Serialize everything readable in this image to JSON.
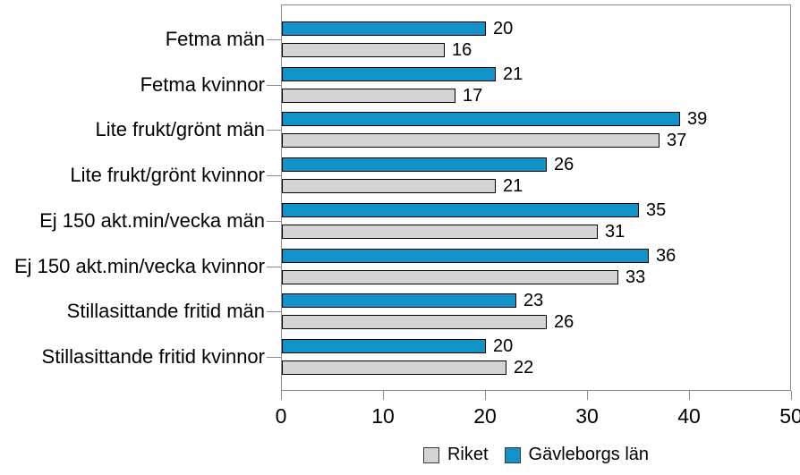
{
  "chart_data": {
    "type": "bar",
    "orientation": "horizontal",
    "title": "",
    "xlabel": "",
    "ylabel": "",
    "xlim": [
      0,
      50
    ],
    "x_ticks": [
      0,
      10,
      20,
      30,
      40,
      50
    ],
    "grid": false,
    "data_labels": true,
    "legend_position": "bottom",
    "categories": [
      "Fetma män",
      "Fetma kvinnor",
      "Lite frukt/grönt män",
      "Lite frukt/grönt kvinnor",
      "Ej 150 akt.min/vecka män",
      "Ej 150 akt.min/vecka kvinnor",
      "Stillasittande fritid män",
      "Stillasittande fritid kvinnor"
    ],
    "series": [
      {
        "name": "Gävleborgs län",
        "color": "#1193C9",
        "values": [
          20,
          21,
          39,
          26,
          35,
          36,
          23,
          20
        ]
      },
      {
        "name": "Riket",
        "color": "#D4D4D4",
        "values": [
          16,
          17,
          37,
          21,
          31,
          33,
          26,
          22
        ]
      }
    ]
  },
  "legend": {
    "items": [
      {
        "label": "Riket",
        "color": "#D4D4D4"
      },
      {
        "label": "Gävleborgs län",
        "color": "#1193C9"
      }
    ]
  },
  "colors": {
    "bar_border": "#000000",
    "axis_line": "#8C8C8C",
    "text": "#000000",
    "background": "#FFFFFF"
  }
}
